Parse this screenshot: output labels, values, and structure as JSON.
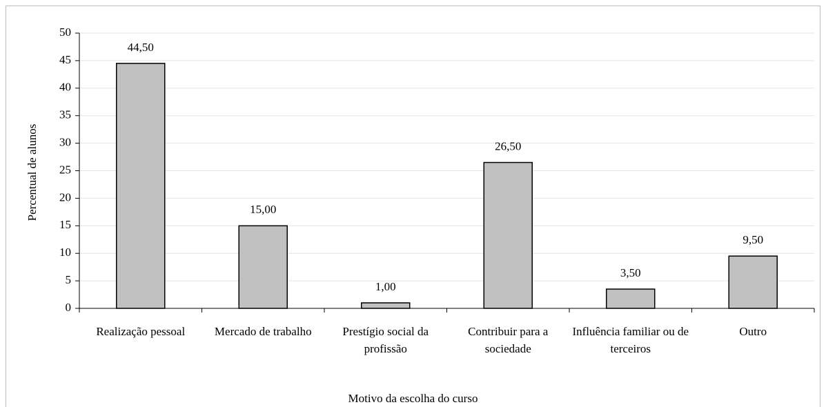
{
  "chart_data": {
    "type": "bar",
    "x_label": "Motivo da escolha do curso",
    "y_label": "Percentual de alunos",
    "categories": [
      "Realização pessoal",
      "Mercado de trabalho",
      "Prestígio social da profissão",
      "Contribuir para a sociedade",
      "Influência familiar ou de terceiros",
      "Outro"
    ],
    "values": [
      44.5,
      15,
      1,
      26.5,
      3.5,
      9.5
    ],
    "value_labels": [
      "44,50",
      "15,00",
      "1,00",
      "26,50",
      "3,50",
      "9,50"
    ],
    "color": "#c0c0c0",
    "ylim": [
      0,
      50
    ],
    "yticks": [
      0,
      5,
      10,
      15,
      20,
      25,
      30,
      35,
      40,
      45,
      50
    ],
    "grid": true
  }
}
